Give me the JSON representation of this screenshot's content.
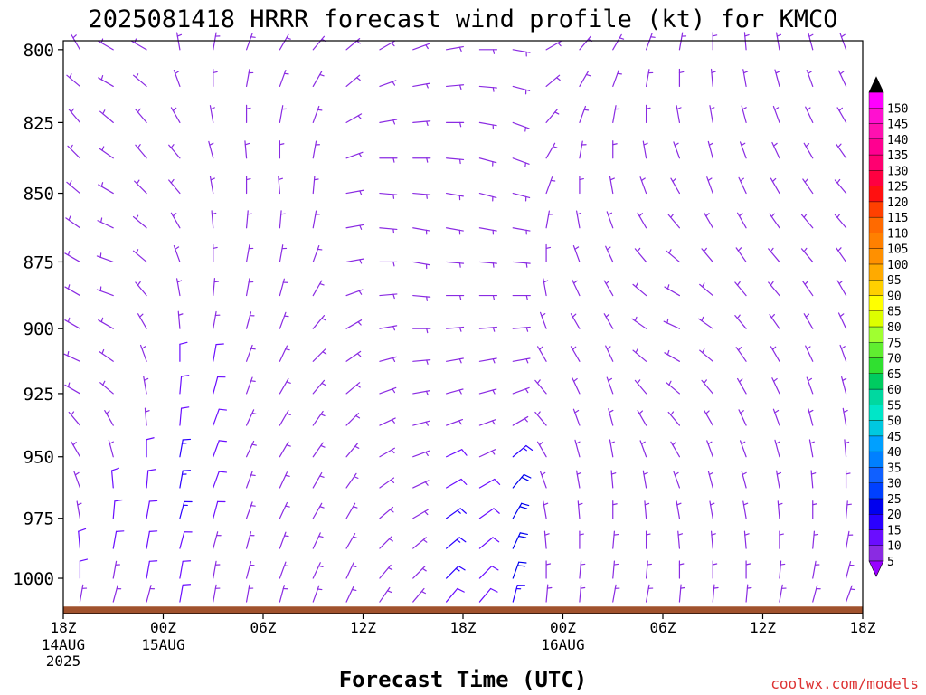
{
  "chart_data": {
    "type": "wind-barb-profile",
    "title": "2025081418 HRRR forecast wind profile (kt) for KMCO",
    "xlabel": "Forecast Time (UTC)",
    "ylabel": "",
    "credit": "coolwx.com/models",
    "y_axis": {
      "unit": "hPa",
      "range": [
        1015,
        797
      ],
      "ticks": [
        800,
        825,
        850,
        875,
        900,
        925,
        950,
        975,
        1000
      ]
    },
    "x_axis": {
      "range_hours": [
        0,
        48
      ],
      "ticks": [
        {
          "hour": 0,
          "label": "18Z",
          "sub": [
            "14AUG",
            "2025"
          ]
        },
        {
          "hour": 6,
          "label": "00Z",
          "sub": [
            "15AUG"
          ]
        },
        {
          "hour": 12,
          "label": "06Z",
          "sub": []
        },
        {
          "hour": 18,
          "label": "12Z",
          "sub": []
        },
        {
          "hour": 24,
          "label": "18Z",
          "sub": []
        },
        {
          "hour": 30,
          "label": "00Z",
          "sub": [
            "16AUG"
          ]
        },
        {
          "hour": 36,
          "label": "06Z",
          "sub": []
        },
        {
          "hour": 42,
          "label": "12Z",
          "sub": []
        },
        {
          "hour": 48,
          "label": "18Z",
          "sub": []
        }
      ]
    },
    "colorbar": {
      "labels": [
        "5",
        "10",
        "15",
        "20",
        "25",
        "30",
        "35",
        "40",
        "45",
        "50",
        "55",
        "60",
        "65",
        "70",
        "75",
        "80",
        "85",
        "90",
        "95",
        "100",
        "105",
        "110",
        "115",
        "120",
        "125",
        "130",
        "135",
        "140",
        "145",
        "150"
      ],
      "colors": [
        "#8a2be2",
        "#6a0dff",
        "#2a00ff",
        "#0000ee",
        "#0040ff",
        "#1060ff",
        "#0080ff",
        "#00a0ff",
        "#00c8e0",
        "#00e6c8",
        "#00d8a0",
        "#00cc60",
        "#30e030",
        "#60ee30",
        "#a0ff30",
        "#ddff00",
        "#ffff00",
        "#ffd000",
        "#ffaa00",
        "#ff9000",
        "#ff8000",
        "#ff6a00",
        "#ff4000",
        "#ff1010",
        "#ff0040",
        "#ff0070",
        "#ff0090",
        "#ff10b0",
        "#ff10d0",
        "#ff00ff"
      ],
      "below_color": "#9900ff",
      "above_color": "#000000"
    },
    "ground": {
      "color": "#a0522d",
      "surface_pressure_range": [
        1012,
        1014
      ]
    },
    "barb_levels_hPa": [
      800,
      812.5,
      825,
      837.5,
      850,
      862.5,
      875,
      887.5,
      900,
      912.5,
      925,
      937.5,
      950,
      962.5,
      975,
      987.5,
      1000,
      1010
    ],
    "wind_columns": [
      {
        "hour": 1,
        "dir_deg": [
          330,
          310,
          320,
          315,
          310,
          305,
          300,
          300,
          300,
          295,
          300,
          320,
          330,
          340,
          350,
          355,
          0,
          10
        ],
        "speed_kt": [
          6,
          7,
          7,
          7,
          8,
          7,
          6,
          6,
          6,
          6,
          7,
          7,
          8,
          8,
          9,
          10,
          10,
          8
        ]
      },
      {
        "hour": 3,
        "dir_deg": [
          300,
          300,
          310,
          305,
          300,
          295,
          290,
          290,
          300,
          305,
          310,
          330,
          345,
          355,
          5,
          10,
          10,
          15
        ],
        "speed_kt": [
          7,
          8,
          8,
          7,
          7,
          7,
          6,
          6,
          6,
          7,
          7,
          8,
          9,
          10,
          10,
          10,
          9,
          7
        ]
      },
      {
        "hour": 5,
        "dir_deg": [
          300,
          310,
          320,
          320,
          315,
          310,
          310,
          320,
          330,
          340,
          350,
          355,
          0,
          5,
          10,
          10,
          10,
          15
        ],
        "speed_kt": [
          6,
          7,
          7,
          7,
          7,
          7,
          6,
          6,
          7,
          7,
          8,
          9,
          10,
          11,
          12,
          11,
          10,
          8
        ]
      },
      {
        "hour": 7,
        "dir_deg": [
          350,
          340,
          330,
          320,
          320,
          330,
          340,
          350,
          355,
          0,
          5,
          5,
          10,
          10,
          15,
          15,
          10,
          10
        ],
        "speed_kt": [
          6,
          6,
          7,
          7,
          7,
          7,
          8,
          8,
          9,
          10,
          12,
          14,
          16,
          17,
          16,
          14,
          12,
          10
        ]
      },
      {
        "hour": 9,
        "dir_deg": [
          10,
          0,
          350,
          345,
          350,
          355,
          0,
          5,
          10,
          10,
          15,
          20,
          20,
          20,
          15,
          15,
          10,
          10
        ],
        "speed_kt": [
          6,
          6,
          6,
          7,
          7,
          7,
          8,
          8,
          9,
          10,
          11,
          11,
          11,
          10,
          10,
          9,
          8,
          7
        ]
      },
      {
        "hour": 11,
        "dir_deg": [
          20,
          10,
          0,
          355,
          0,
          5,
          10,
          10,
          15,
          20,
          20,
          25,
          25,
          20,
          20,
          15,
          15,
          10
        ],
        "speed_kt": [
          6,
          6,
          6,
          6,
          7,
          7,
          7,
          8,
          8,
          9,
          9,
          9,
          8,
          8,
          8,
          7,
          7,
          6
        ]
      },
      {
        "hour": 13,
        "dir_deg": [
          30,
          20,
          10,
          0,
          355,
          5,
          10,
          15,
          20,
          25,
          30,
          30,
          30,
          25,
          25,
          20,
          20,
          15
        ],
        "speed_kt": [
          6,
          6,
          6,
          6,
          6,
          6,
          7,
          7,
          7,
          8,
          8,
          8,
          8,
          8,
          7,
          7,
          6,
          6
        ]
      },
      {
        "hour": 15,
        "dir_deg": [
          40,
          30,
          20,
          10,
          5,
          10,
          20,
          30,
          40,
          45,
          40,
          35,
          35,
          30,
          30,
          25,
          25,
          20
        ],
        "speed_kt": [
          6,
          6,
          6,
          6,
          6,
          6,
          6,
          7,
          7,
          8,
          8,
          8,
          8,
          7,
          7,
          7,
          6,
          6
        ]
      },
      {
        "hour": 17,
        "dir_deg": [
          50,
          50,
          60,
          70,
          80,
          80,
          80,
          70,
          60,
          55,
          50,
          45,
          40,
          35,
          30,
          30,
          25,
          25
        ],
        "speed_kt": [
          6,
          6,
          6,
          6,
          7,
          7,
          7,
          7,
          7,
          8,
          8,
          8,
          7,
          7,
          7,
          6,
          6,
          6
        ]
      },
      {
        "hour": 19,
        "dir_deg": [
          60,
          70,
          80,
          90,
          95,
          95,
          90,
          85,
          80,
          75,
          70,
          65,
          60,
          55,
          50,
          45,
          40,
          35
        ],
        "speed_kt": [
          6,
          7,
          7,
          7,
          8,
          8,
          8,
          8,
          8,
          8,
          8,
          8,
          7,
          7,
          7,
          6,
          6,
          6
        ]
      },
      {
        "hour": 21,
        "dir_deg": [
          70,
          80,
          85,
          90,
          95,
          100,
          100,
          95,
          90,
          85,
          80,
          75,
          70,
          65,
          60,
          50,
          45,
          40
        ],
        "speed_kt": [
          7,
          7,
          7,
          8,
          8,
          8,
          8,
          8,
          8,
          8,
          8,
          7,
          7,
          7,
          7,
          6,
          6,
          6
        ]
      },
      {
        "hour": 23,
        "dir_deg": [
          80,
          85,
          90,
          95,
          100,
          100,
          95,
          90,
          85,
          80,
          75,
          70,
          65,
          60,
          55,
          50,
          45,
          40
        ],
        "speed_kt": [
          7,
          7,
          7,
          8,
          8,
          8,
          8,
          8,
          8,
          8,
          7,
          7,
          12,
          14,
          15,
          16,
          15,
          12
        ]
      },
      {
        "hour": 25,
        "dir_deg": [
          90,
          95,
          100,
          105,
          105,
          100,
          95,
          90,
          85,
          80,
          75,
          70,
          65,
          60,
          55,
          50,
          45,
          40
        ],
        "speed_kt": [
          6,
          6,
          7,
          7,
          7,
          7,
          7,
          7,
          7,
          7,
          7,
          7,
          9,
          10,
          11,
          12,
          12,
          10
        ]
      },
      {
        "hour": 27,
        "dir_deg": [
          100,
          105,
          110,
          110,
          105,
          100,
          95,
          90,
          85,
          80,
          70,
          60,
          50,
          40,
          30,
          25,
          20,
          15
        ],
        "speed_kt": [
          6,
          6,
          6,
          6,
          6,
          6,
          6,
          6,
          6,
          7,
          7,
          7,
          18,
          20,
          22,
          24,
          20,
          15
        ]
      },
      {
        "hour": 29,
        "dir_deg": [
          60,
          50,
          40,
          30,
          20,
          10,
          0,
          350,
          340,
          330,
          320,
          320,
          330,
          340,
          350,
          355,
          0,
          5
        ],
        "speed_kt": [
          6,
          6,
          6,
          6,
          6,
          6,
          6,
          6,
          6,
          6,
          7,
          7,
          7,
          8,
          8,
          8,
          8,
          7
        ]
      },
      {
        "hour": 31,
        "dir_deg": [
          40,
          30,
          20,
          10,
          0,
          350,
          340,
          335,
          330,
          330,
          335,
          340,
          345,
          350,
          355,
          0,
          5,
          5
        ],
        "speed_kt": [
          6,
          6,
          6,
          6,
          6,
          6,
          6,
          6,
          6,
          7,
          7,
          7,
          7,
          7,
          7,
          7,
          7,
          6
        ]
      },
      {
        "hour": 33,
        "dir_deg": [
          30,
          20,
          10,
          0,
          350,
          340,
          335,
          330,
          330,
          335,
          340,
          345,
          350,
          355,
          0,
          5,
          5,
          10
        ],
        "speed_kt": [
          6,
          6,
          6,
          6,
          6,
          7,
          7,
          7,
          7,
          7,
          7,
          7,
          7,
          7,
          7,
          7,
          7,
          6
        ]
      },
      {
        "hour": 35,
        "dir_deg": [
          20,
          10,
          0,
          350,
          340,
          330,
          320,
          310,
          305,
          310,
          320,
          330,
          340,
          350,
          355,
          0,
          5,
          10
        ],
        "speed_kt": [
          6,
          6,
          6,
          6,
          7,
          7,
          7,
          7,
          7,
          7,
          7,
          7,
          7,
          7,
          7,
          7,
          6,
          6
        ]
      },
      {
        "hour": 37,
        "dir_deg": [
          10,
          0,
          350,
          340,
          330,
          320,
          310,
          300,
          295,
          300,
          310,
          320,
          330,
          340,
          350,
          355,
          0,
          5
        ],
        "speed_kt": [
          6,
          6,
          6,
          6,
          6,
          7,
          7,
          7,
          7,
          7,
          7,
          7,
          7,
          7,
          6,
          6,
          6,
          6
        ]
      },
      {
        "hour": 39,
        "dir_deg": [
          0,
          355,
          350,
          345,
          340,
          330,
          320,
          310,
          305,
          310,
          320,
          330,
          340,
          345,
          350,
          355,
          0,
          5
        ],
        "speed_kt": [
          6,
          6,
          6,
          6,
          6,
          6,
          6,
          7,
          7,
          7,
          7,
          7,
          6,
          6,
          6,
          6,
          6,
          6
        ]
      },
      {
        "hour": 41,
        "dir_deg": [
          355,
          350,
          345,
          340,
          335,
          330,
          325,
          320,
          320,
          325,
          330,
          335,
          340,
          345,
          350,
          355,
          0,
          5
        ],
        "speed_kt": [
          6,
          6,
          6,
          6,
          6,
          6,
          6,
          6,
          6,
          6,
          6,
          6,
          6,
          6,
          6,
          6,
          6,
          6
        ]
      },
      {
        "hour": 43,
        "dir_deg": [
          350,
          345,
          340,
          335,
          330,
          325,
          320,
          320,
          325,
          330,
          335,
          340,
          345,
          350,
          355,
          0,
          5,
          10
        ],
        "speed_kt": [
          6,
          6,
          6,
          6,
          6,
          6,
          6,
          6,
          6,
          6,
          6,
          6,
          6,
          6,
          6,
          6,
          6,
          6
        ]
      },
      {
        "hour": 45,
        "dir_deg": [
          345,
          340,
          335,
          330,
          325,
          320,
          320,
          325,
          330,
          335,
          340,
          345,
          350,
          355,
          0,
          5,
          10,
          15
        ],
        "speed_kt": [
          6,
          6,
          6,
          6,
          6,
          6,
          6,
          6,
          6,
          6,
          6,
          6,
          6,
          6,
          6,
          6,
          6,
          6
        ]
      },
      {
        "hour": 47,
        "dir_deg": [
          340,
          335,
          330,
          325,
          320,
          320,
          325,
          330,
          335,
          340,
          345,
          350,
          355,
          0,
          5,
          10,
          15,
          20
        ],
        "speed_kt": [
          6,
          6,
          6,
          6,
          6,
          6,
          6,
          6,
          6,
          6,
          6,
          6,
          6,
          6,
          6,
          6,
          6,
          6
        ]
      }
    ]
  }
}
